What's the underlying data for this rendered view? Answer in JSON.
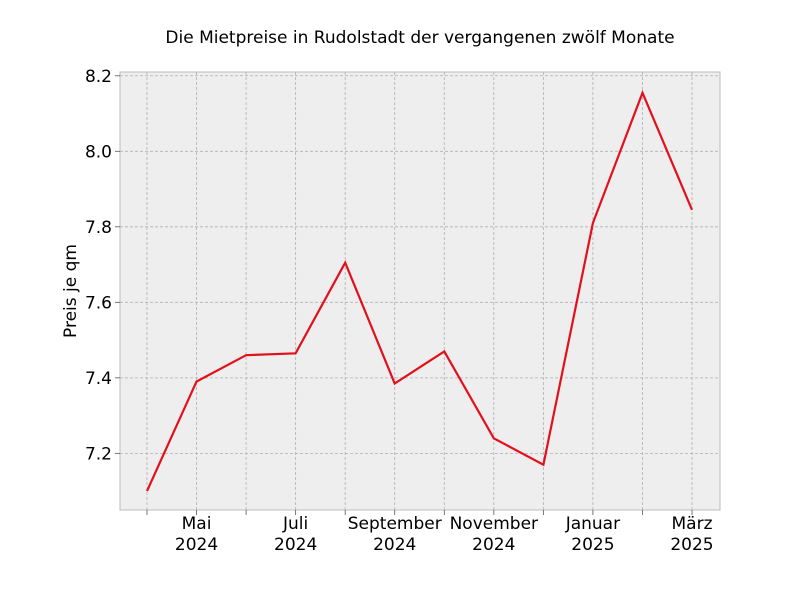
{
  "chart_data": {
    "type": "line",
    "title": "Die Mietpreise in Rudolstadt der vergangenen zwölf Monate",
    "xlabel": "",
    "ylabel": "Preis je qm",
    "ylim": [
      7.05,
      8.21
    ],
    "y_ticks": [
      7.2,
      7.4,
      7.6,
      7.8,
      8.0,
      8.2
    ],
    "y_tick_labels": [
      "7.2",
      "7.4",
      "7.6",
      "7.8",
      "8.0",
      "8.2"
    ],
    "x": [
      "2024-04",
      "2024-05",
      "2024-06",
      "2024-07",
      "2024-08",
      "2024-09",
      "2024-10",
      "2024-11",
      "2024-12",
      "2025-01",
      "2025-02",
      "2025-03"
    ],
    "x_tick_labels": [
      {
        "month": "Mai",
        "year": "2024"
      },
      {
        "month": "Juli",
        "year": "2024"
      },
      {
        "month": "September",
        "year": "2024"
      },
      {
        "month": "November",
        "year": "2024"
      },
      {
        "month": "Januar",
        "year": "2025"
      },
      {
        "month": "März",
        "year": "2025"
      }
    ],
    "labeled_indices": [
      1,
      3,
      5,
      7,
      9,
      11
    ],
    "series": [
      {
        "color": "#e3101c",
        "values": [
          7.1,
          7.39,
          7.46,
          7.465,
          7.705,
          7.385,
          7.47,
          7.24,
          7.17,
          7.81,
          8.155,
          7.845
        ]
      }
    ],
    "grid": true,
    "background": "#eeeeee"
  }
}
